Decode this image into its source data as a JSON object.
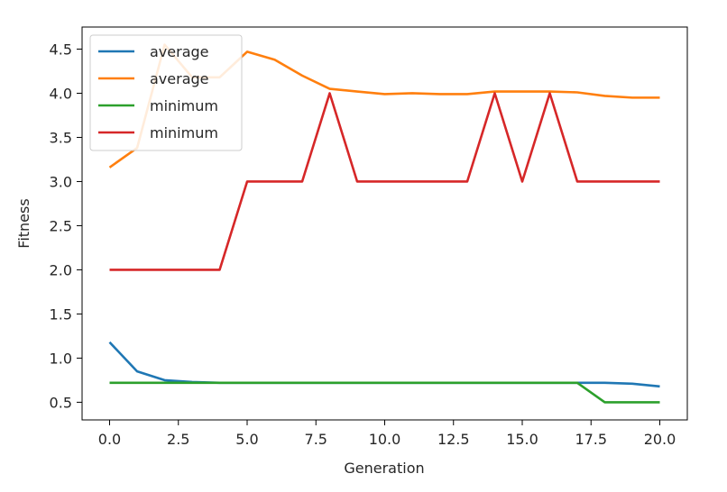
{
  "chart_data": {
    "type": "line",
    "xlabel": "Generation",
    "ylabel": "Fitness",
    "xlim": [
      -1,
      21
    ],
    "ylim": [
      0.3,
      4.75
    ],
    "xticks": [
      0.0,
      2.5,
      5.0,
      7.5,
      10.0,
      12.5,
      15.0,
      17.5,
      20.0
    ],
    "xtick_labels": [
      "0.0",
      "2.5",
      "5.0",
      "7.5",
      "10.0",
      "12.5",
      "15.0",
      "17.5",
      "20.0"
    ],
    "yticks": [
      0.5,
      1.0,
      1.5,
      2.0,
      2.5,
      3.0,
      3.5,
      4.0,
      4.5
    ],
    "ytick_labels": [
      "0.5",
      "1.0",
      "1.5",
      "2.0",
      "2.5",
      "3.0",
      "3.5",
      "4.0",
      "4.5"
    ],
    "grid": false,
    "legend_position": "top-left",
    "x": [
      0,
      1,
      2,
      3,
      4,
      5,
      6,
      7,
      8,
      9,
      10,
      11,
      12,
      13,
      14,
      15,
      16,
      17,
      18,
      19,
      20
    ],
    "series": [
      {
        "name": "average",
        "color": "#1f77b4",
        "values": [
          1.18,
          0.85,
          0.75,
          0.73,
          0.72,
          0.72,
          0.72,
          0.72,
          0.72,
          0.72,
          0.72,
          0.72,
          0.72,
          0.72,
          0.72,
          0.72,
          0.72,
          0.72,
          0.72,
          0.71,
          0.68
        ]
      },
      {
        "name": "average",
        "color": "#ff7f0e",
        "values": [
          3.16,
          3.38,
          4.55,
          4.18,
          4.18,
          4.47,
          4.38,
          4.2,
          4.05,
          4.02,
          3.99,
          4.0,
          3.99,
          3.99,
          4.02,
          4.02,
          4.02,
          4.01,
          3.97,
          3.95,
          3.95
        ]
      },
      {
        "name": "minimum",
        "color": "#2ca02c",
        "values": [
          0.72,
          0.72,
          0.72,
          0.72,
          0.72,
          0.72,
          0.72,
          0.72,
          0.72,
          0.72,
          0.72,
          0.72,
          0.72,
          0.72,
          0.72,
          0.72,
          0.72,
          0.72,
          0.5,
          0.5,
          0.5
        ]
      },
      {
        "name": "minimum",
        "color": "#d62728",
        "values": [
          2.0,
          2.0,
          2.0,
          2.0,
          2.0,
          3.0,
          3.0,
          3.0,
          4.0,
          3.0,
          3.0,
          3.0,
          3.0,
          3.0,
          4.0,
          3.0,
          4.0,
          3.0,
          3.0,
          3.0,
          3.0
        ]
      }
    ]
  }
}
